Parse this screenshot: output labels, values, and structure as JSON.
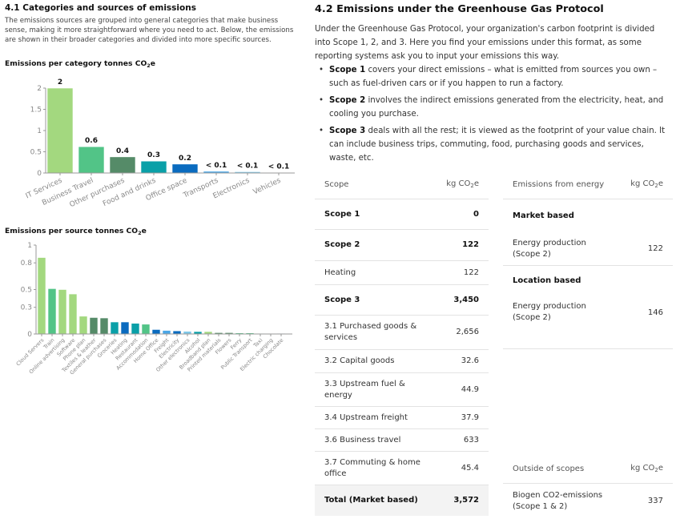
{
  "left": {
    "title": "4.1  Categories and sources of emissions",
    "description": "The emissions sources are grouped into general categories that make business sense, making it more straightforward where you need to act. Below, the emissions are shown in their broader categories and divided into more specific sources.",
    "chart1_title": "Emissions per category tonnes CO",
    "chart1_title_sub": "2",
    "chart1_title_end": "e",
    "chart2_title": "Emissions per source tonnes CO",
    "chart2_title_sub": "2",
    "chart2_title_end": "e"
  },
  "chart_data": [
    {
      "type": "bar",
      "title": "Emissions per category tonnes CO2e",
      "categories": [
        "IT Services",
        "Business Travel",
        "Other purchases",
        "Food and drinks",
        "Office space",
        "Transports",
        "Electronics",
        "Vehicles"
      ],
      "values": [
        2,
        0.62,
        0.38,
        0.28,
        0.21,
        0.04,
        0.03,
        0.01
      ],
      "data_labels": [
        "2",
        "0.6",
        "0.4",
        "0.3",
        "0.2",
        "< 0.1",
        "< 0.1",
        "< 0.1"
      ],
      "colors": [
        "#a3d87f",
        "#52c487",
        "#558b68",
        "#0aa0a8",
        "#0a6bbf",
        "#4aa6e6",
        "#7ec8e8",
        "#c9e9f6"
      ],
      "yticks": [
        "0",
        "0.5",
        "1",
        "1.5",
        "2"
      ],
      "ylim": [
        0,
        2
      ]
    },
    {
      "type": "bar",
      "title": "Emissions per source tonnes CO2e",
      "categories": [
        "Cloud Servers",
        "Train",
        "Online advertising",
        "Software",
        "Phone plan",
        "Textiles & leather",
        "General purchases",
        "Groceries",
        "Heating",
        "Restaurant",
        "Accommodation",
        "Home Office",
        "Freight",
        "Electricity",
        "Other electronics",
        "Alcohol",
        "Broadband plan",
        "Printed materials",
        "Flowers",
        "Ferry",
        "Public Transport",
        "Taxi",
        "Electric charging",
        "Chocolate"
      ],
      "values": [
        0.86,
        0.51,
        0.5,
        0.45,
        0.2,
        0.185,
        0.18,
        0.135,
        0.135,
        0.12,
        0.11,
        0.05,
        0.04,
        0.035,
        0.03,
        0.027,
        0.027,
        0.015,
        0.015,
        0.012,
        0.012,
        0.006,
        0.003,
        0.005
      ],
      "colors": [
        "#a3d87f",
        "#52c487",
        "#a3d87f",
        "#a3d87f",
        "#a3d87f",
        "#558b68",
        "#558b68",
        "#0aa0a8",
        "#0a6bbf",
        "#0aa0a8",
        "#52c487",
        "#0a6bbf",
        "#4aa6e6",
        "#0a6bbf",
        "#7ec8e8",
        "#0aa0a8",
        "#a3d87f",
        "#558b68",
        "#558b68",
        "#52c487",
        "#52c487",
        "#52c487",
        "#a3d87f",
        "#0aa0a8"
      ],
      "yticks": [
        "0",
        "0.3",
        "0.5",
        "0.8",
        "1"
      ],
      "ylim": [
        0,
        1
      ]
    }
  ],
  "right": {
    "title": "4.2  Emissions under the Greenhouse Gas Protocol",
    "intro": "Under the Greenhouse Gas Protocol, your organization's carbon footprint is divided into Scope 1, 2, and 3. Here you find your emissions under this format, as some reporting systems ask you to input your emissions this way.",
    "bullets": [
      {
        "bold": "Scope 1",
        "text": " covers your direct emissions – what is emitted from sources you own – such as fuel-driven cars or if you happen to run a factory."
      },
      {
        "bold": "Scope 2",
        "text": " involves the indirect emissions generated from the electricity, heat, and cooling you purchase."
      },
      {
        "bold": "Scope 3",
        "text": " deals with all the rest; it is viewed as the footprint of your value chain. It can include business trips, commuting, food, purchasing goods and services, waste, etc."
      }
    ]
  },
  "scope_table": {
    "col1": "Scope",
    "col2": "kg CO",
    "col2_sub": "2",
    "col2_end": "e",
    "rows": [
      {
        "label": "Scope 1",
        "value": "0"
      },
      {
        "label": "Scope 2",
        "value": "122"
      },
      {
        "label": "Heating",
        "value": "122"
      },
      {
        "label": "Scope 3",
        "value": "3,450"
      },
      {
        "label": "3.1 Purchased goods & services",
        "value": "2,656"
      },
      {
        "label": "3.2 Capital goods",
        "value": "32.6"
      },
      {
        "label": "3.3 Upstream fuel & energy",
        "value": "44.9"
      },
      {
        "label": "3.4 Upstream freight",
        "value": "37.9"
      },
      {
        "label": "3.6 Business travel",
        "value": "633"
      },
      {
        "label": "3.7 Commuting & home office",
        "value": "45.4"
      },
      {
        "label": "Total (Market based)",
        "value": "3,572"
      }
    ]
  },
  "energy_table": {
    "col1": "Emissions from energy",
    "col2": "kg CO",
    "col2_sub": "2",
    "col2_end": "e",
    "market_heading": "Market based",
    "market_row": {
      "label": "Energy production (Scope 2)",
      "value": "122"
    },
    "location_heading": "Location based",
    "location_row": {
      "label": "Energy production (Scope 2)",
      "value": "146"
    }
  },
  "outside_table": {
    "col1": "Outside of scopes",
    "col2": "kg CO",
    "col2_sub": "2",
    "col2_end": "e",
    "row": {
      "label": "Biogen CO2-emissions (Scope 1 & 2)",
      "value": "337"
    }
  }
}
